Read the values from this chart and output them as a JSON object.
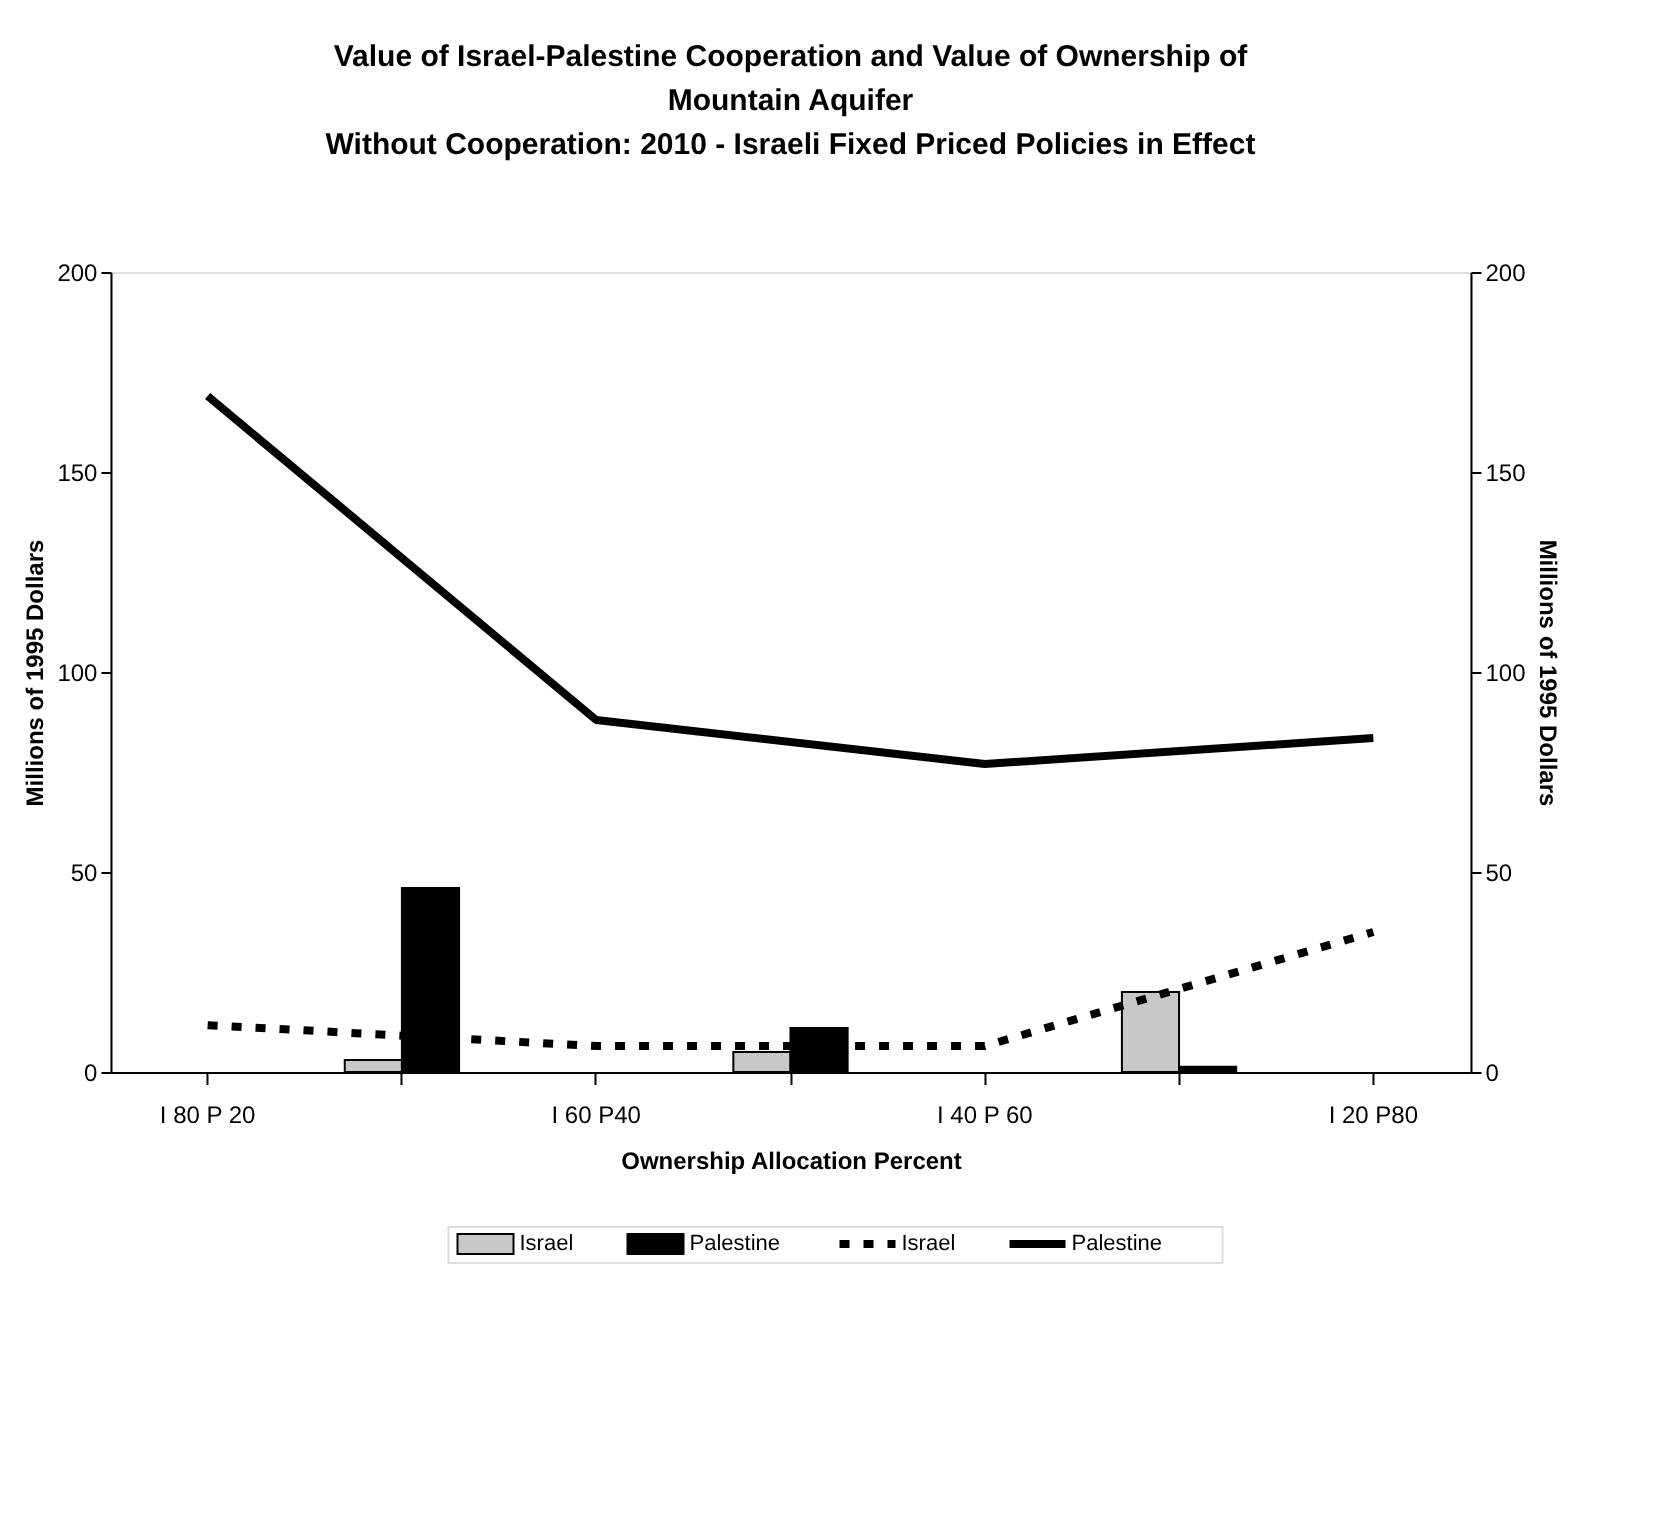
{
  "chart_data": {
    "type": "bar",
    "title": "Value of Israel-Palestine Cooperation and Value of Ownership of Mountain Aquifer",
    "subtitle": "Without Cooperation:  2010 - Israeli Fixed Priced Policies in Effect",
    "xlabel": "Ownership Allocation Percent",
    "ylabel": "Millions of 1995 Dollars",
    "y2label": "Millions of 1995 Dollars",
    "categories": [
      "I 80 P 20",
      null,
      "I 60 P40",
      null,
      "I 40 P 60",
      null,
      "I 20 P80"
    ],
    "series": [
      {
        "name": "Israel",
        "color": "#c8c8c8",
        "values": [
          null,
          3,
          null,
          5,
          null,
          20,
          null
        ]
      },
      {
        "name": "Palestine",
        "color": "#000000",
        "values": [
          null,
          46,
          null,
          11,
          null,
          1.3,
          null
        ]
      },
      {
        "name": "Israel",
        "type": "line",
        "color": "#000000",
        "line_style": "dotted",
        "axis": "y2",
        "values": [
          11.7,
          null,
          6.5,
          null,
          6.5,
          null,
          35
        ]
      },
      {
        "name": "Palestine",
        "type": "line",
        "color": "#000000",
        "line_style": "solid",
        "axis": "y2",
        "values": [
          169,
          null,
          88,
          null,
          77,
          null,
          83.5
        ]
      }
    ],
    "ylim": [
      0,
      200
    ],
    "yticks": [
      0,
      50,
      100,
      150,
      200
    ],
    "y2lim": [
      0,
      200
    ],
    "y2ticks": [
      0,
      50,
      100,
      150,
      200
    ],
    "grid": false,
    "legend": "bottom"
  }
}
